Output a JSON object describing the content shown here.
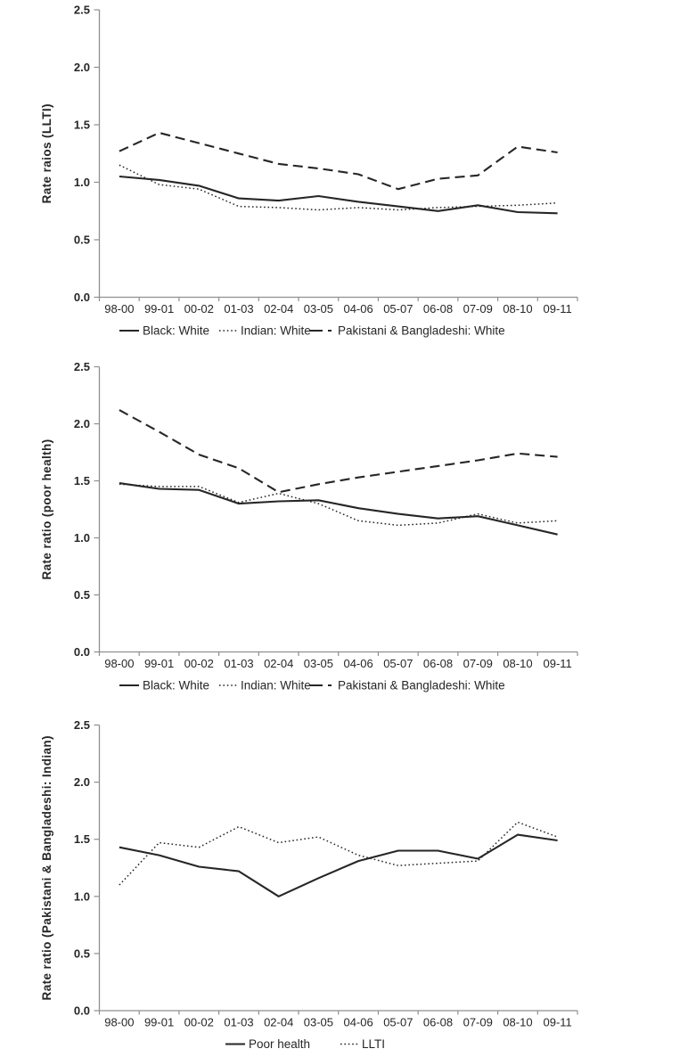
{
  "page": {
    "background": "#ffffff"
  },
  "colors": {
    "series_line": "#262626",
    "axis_line": "#8f8f8f",
    "text": "#262626"
  },
  "chart_data": [
    {
      "type": "line",
      "ylabel": "Rate raios (LLTI)",
      "xlabel": "",
      "title": "",
      "ylim": [
        0.0,
        2.5
      ],
      "y_tick_step": 0.5,
      "y_tick_labels": [
        "0.0",
        "0.5",
        "1.0",
        "1.5",
        "2.0",
        "2.5"
      ],
      "grid": false,
      "legend_position": "bottom",
      "categories": [
        "98-00",
        "99-01",
        "00-02",
        "01-03",
        "02-04",
        "03-05",
        "04-06",
        "05-07",
        "06-08",
        "07-09",
        "08-10",
        "09-11"
      ],
      "series": [
        {
          "name": "Black: White",
          "style": "solid",
          "values": [
            1.05,
            1.02,
            0.97,
            0.86,
            0.84,
            0.88,
            0.83,
            0.79,
            0.75,
            0.8,
            0.74,
            0.73
          ]
        },
        {
          "name": "Indian: White",
          "style": "dotted",
          "values": [
            1.15,
            0.98,
            0.94,
            0.79,
            0.78,
            0.76,
            0.78,
            0.76,
            0.78,
            0.79,
            0.8,
            0.82
          ]
        },
        {
          "name": "Pakistani & Bangladeshi: White",
          "style": "dashed",
          "values": [
            1.27,
            1.43,
            1.34,
            1.25,
            1.16,
            1.12,
            1.07,
            0.94,
            1.03,
            1.06,
            1.31,
            1.26
          ]
        }
      ]
    },
    {
      "type": "line",
      "ylabel": "Rate ratio (poor health)",
      "xlabel": "",
      "title": "",
      "ylim": [
        0.0,
        2.5
      ],
      "y_tick_step": 0.5,
      "y_tick_labels": [
        "0.0",
        "0.5",
        "1.0",
        "1.5",
        "2.0",
        "2.5"
      ],
      "grid": false,
      "legend_position": "bottom",
      "categories": [
        "98-00",
        "99-01",
        "00-02",
        "01-03",
        "02-04",
        "03-05",
        "04-06",
        "05-07",
        "06-08",
        "07-09",
        "08-10",
        "09-11"
      ],
      "series": [
        {
          "name": "Black: White",
          "style": "solid",
          "values": [
            1.48,
            1.43,
            1.42,
            1.3,
            1.32,
            1.33,
            1.26,
            1.21,
            1.17,
            1.19,
            1.11,
            1.03
          ]
        },
        {
          "name": "Indian: White",
          "style": "dotted",
          "values": [
            1.47,
            1.45,
            1.45,
            1.31,
            1.39,
            1.3,
            1.15,
            1.11,
            1.13,
            1.21,
            1.13,
            1.15
          ]
        },
        {
          "name": "Pakistani & Bangladeshi: White",
          "style": "dashed",
          "values": [
            2.12,
            1.93,
            1.73,
            1.61,
            1.4,
            1.47,
            1.53,
            1.58,
            1.63,
            1.68,
            1.74,
            1.71
          ]
        }
      ]
    },
    {
      "type": "line",
      "ylabel": "Rate ratio (Pakistani & Bangladeshi: Indian)",
      "xlabel": "",
      "title": "",
      "ylim": [
        0.0,
        2.5
      ],
      "y_tick_step": 0.5,
      "y_tick_labels": [
        "0.0",
        "0.5",
        "1.0",
        "1.5",
        "2.0",
        "2.5"
      ],
      "grid": false,
      "legend_position": "bottom",
      "categories": [
        "98-00",
        "99-01",
        "00-02",
        "01-03",
        "02-04",
        "03-05",
        "04-06",
        "05-07",
        "06-08",
        "07-09",
        "08-10",
        "09-11"
      ],
      "series": [
        {
          "name": "Poor health",
          "style": "solid",
          "values": [
            1.43,
            1.36,
            1.26,
            1.22,
            1.0,
            1.16,
            1.31,
            1.4,
            1.4,
            1.33,
            1.54,
            1.49
          ]
        },
        {
          "name": "LLTI",
          "style": "dotted",
          "values": [
            1.1,
            1.47,
            1.43,
            1.61,
            1.47,
            1.52,
            1.36,
            1.27,
            1.29,
            1.31,
            1.65,
            1.52
          ]
        }
      ]
    }
  ]
}
